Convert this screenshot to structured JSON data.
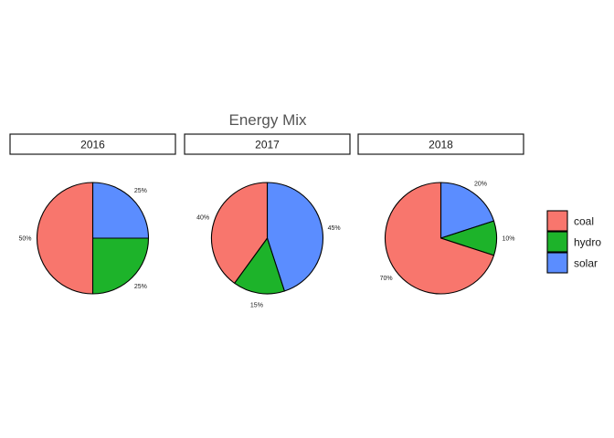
{
  "chart_data": {
    "type": "pie",
    "title": "Energy Mix",
    "categories": [
      "coal",
      "hydro",
      "solar"
    ],
    "colors": {
      "coal": "#F8766D",
      "hydro": "#1DB32A",
      "solar": "#5B8DFF"
    },
    "legend_position": "right",
    "panels": [
      {
        "facet": "2016",
        "values": [
          50,
          25,
          25
        ],
        "labels": [
          "50%",
          "25%",
          "25%"
        ]
      },
      {
        "facet": "2017",
        "values": [
          40,
          15,
          45
        ],
        "labels": [
          "40%",
          "15%",
          "45%"
        ]
      },
      {
        "facet": "2018",
        "values": [
          70,
          10,
          20
        ],
        "labels": [
          "70%",
          "10%",
          "20%"
        ]
      }
    ]
  }
}
